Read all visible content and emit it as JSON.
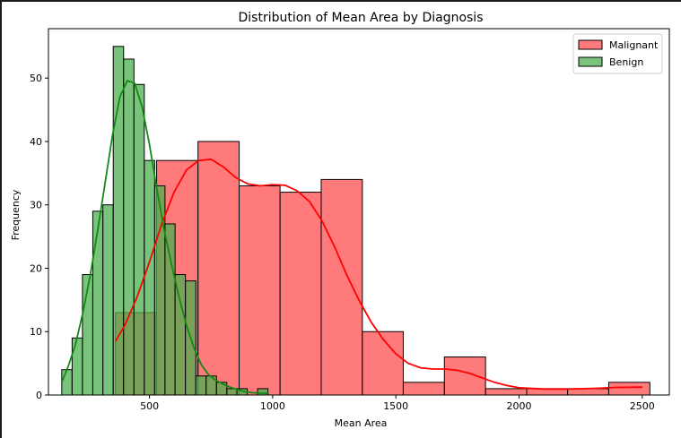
{
  "chart_data": {
    "type": "bar",
    "title": "Distribution of Mean Area by Diagnosis",
    "xlabel": "Mean Area",
    "ylabel": "Frequency",
    "xlim": [
      90,
      2610
    ],
    "ylim": [
      0,
      57.8
    ],
    "xticks": [
      500,
      1000,
      1500,
      2000,
      2500
    ],
    "yticks": [
      0,
      10,
      20,
      30,
      40,
      50
    ],
    "legend_position": "top-right",
    "series": [
      {
        "name": "Malignant",
        "color": "#ff4d4d",
        "line_color": "#ff0000",
        "bins": [
          {
            "x0": 362,
            "x1": 529,
            "count": 13
          },
          {
            "x0": 529,
            "x1": 697,
            "count": 37
          },
          {
            "x0": 697,
            "x1": 864,
            "count": 40
          },
          {
            "x0": 864,
            "x1": 1030,
            "count": 33
          },
          {
            "x0": 1030,
            "x1": 1197,
            "count": 32
          },
          {
            "x0": 1197,
            "x1": 1364,
            "count": 34
          },
          {
            "x0": 1364,
            "x1": 1530,
            "count": 10
          },
          {
            "x0": 1530,
            "x1": 1697,
            "count": 2
          },
          {
            "x0": 1697,
            "x1": 1864,
            "count": 6
          },
          {
            "x0": 1864,
            "x1": 2031,
            "count": 1
          },
          {
            "x0": 2031,
            "x1": 2197,
            "count": 1
          },
          {
            "x0": 2197,
            "x1": 2364,
            "count": 1
          },
          {
            "x0": 2364,
            "x1": 2531,
            "count": 2
          }
        ],
        "kde": [
          [
            362,
            8.5
          ],
          [
            400,
            11
          ],
          [
            450,
            15.5
          ],
          [
            500,
            21
          ],
          [
            550,
            27
          ],
          [
            600,
            32
          ],
          [
            650,
            35.5
          ],
          [
            700,
            37
          ],
          [
            750,
            37.2
          ],
          [
            800,
            36
          ],
          [
            850,
            34.3
          ],
          [
            900,
            33.3
          ],
          [
            950,
            33
          ],
          [
            1000,
            33.2
          ],
          [
            1050,
            33.1
          ],
          [
            1100,
            32.2
          ],
          [
            1150,
            30.5
          ],
          [
            1200,
            27.5
          ],
          [
            1250,
            23.5
          ],
          [
            1300,
            19
          ],
          [
            1350,
            15
          ],
          [
            1400,
            11.5
          ],
          [
            1450,
            8.7
          ],
          [
            1500,
            6.5
          ],
          [
            1550,
            5
          ],
          [
            1600,
            4.3
          ],
          [
            1650,
            4.1
          ],
          [
            1700,
            4.1
          ],
          [
            1750,
            3.9
          ],
          [
            1800,
            3.4
          ],
          [
            1850,
            2.7
          ],
          [
            1900,
            2
          ],
          [
            1950,
            1.5
          ],
          [
            2000,
            1.15
          ],
          [
            2100,
            0.95
          ],
          [
            2200,
            0.95
          ],
          [
            2300,
            1.05
          ],
          [
            2400,
            1.2
          ],
          [
            2500,
            1.25
          ]
        ]
      },
      {
        "name": "Benign",
        "color": "#4caf50",
        "line_color": "#138a13",
        "bins": [
          {
            "x0": 144,
            "x1": 186,
            "count": 4
          },
          {
            "x0": 186,
            "x1": 228,
            "count": 9
          },
          {
            "x0": 228,
            "x1": 270,
            "count": 19
          },
          {
            "x0": 270,
            "x1": 311,
            "count": 29
          },
          {
            "x0": 311,
            "x1": 353,
            "count": 30
          },
          {
            "x0": 353,
            "x1": 395,
            "count": 55
          },
          {
            "x0": 395,
            "x1": 437,
            "count": 53
          },
          {
            "x0": 437,
            "x1": 479,
            "count": 49
          },
          {
            "x0": 479,
            "x1": 521,
            "count": 37
          },
          {
            "x0": 521,
            "x1": 563,
            "count": 33
          },
          {
            "x0": 563,
            "x1": 604,
            "count": 27
          },
          {
            "x0": 604,
            "x1": 646,
            "count": 19
          },
          {
            "x0": 646,
            "x1": 688,
            "count": 18
          },
          {
            "x0": 688,
            "x1": 730,
            "count": 3
          },
          {
            "x0": 730,
            "x1": 772,
            "count": 3
          },
          {
            "x0": 772,
            "x1": 814,
            "count": 2
          },
          {
            "x0": 814,
            "x1": 855,
            "count": 1
          },
          {
            "x0": 855,
            "x1": 897,
            "count": 1
          },
          {
            "x0": 897,
            "x1": 939,
            "count": 0
          },
          {
            "x0": 939,
            "x1": 981,
            "count": 1
          }
        ],
        "kde": [
          [
            144,
            2
          ],
          [
            170,
            4.5
          ],
          [
            200,
            8
          ],
          [
            230,
            13
          ],
          [
            260,
            19
          ],
          [
            290,
            26
          ],
          [
            320,
            33.5
          ],
          [
            350,
            41
          ],
          [
            380,
            47
          ],
          [
            410,
            49.6
          ],
          [
            440,
            49.2
          ],
          [
            470,
            45.5
          ],
          [
            500,
            39.5
          ],
          [
            530,
            32.5
          ],
          [
            560,
            26
          ],
          [
            590,
            20.5
          ],
          [
            620,
            15.5
          ],
          [
            650,
            11
          ],
          [
            680,
            7.5
          ],
          [
            710,
            4.8
          ],
          [
            740,
            3.2
          ],
          [
            770,
            2.3
          ],
          [
            800,
            1.7
          ],
          [
            830,
            1.2
          ],
          [
            860,
            0.8
          ],
          [
            890,
            0.5
          ],
          [
            920,
            0.35
          ],
          [
            950,
            0.3
          ],
          [
            981,
            0.25
          ]
        ]
      }
    ]
  }
}
